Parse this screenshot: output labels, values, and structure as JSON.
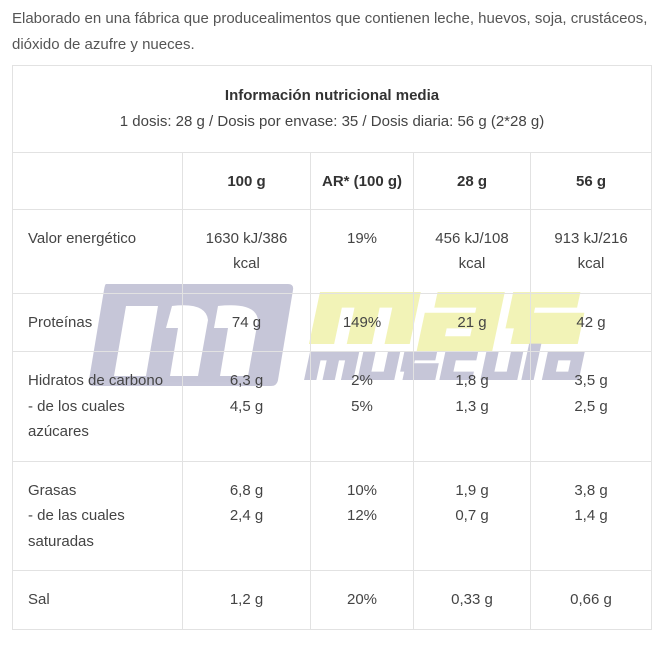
{
  "intro": "Elaborado en una fábrica que producealimentos que contienen leche, huevos, soja, crustáceos, dióxido de azufre y nueces.",
  "table": {
    "title": "Información nutricional media",
    "subtitle": "1 dosis: 28 g / Dosis por envase: 35 / Dosis diaria: 56 g (2*28 g)",
    "columns": [
      "",
      "100 g",
      "AR* (100 g)",
      "28 g",
      "56 g"
    ],
    "rows": [
      {
        "label": [
          "Valor energético"
        ],
        "c1": [
          "1630 kJ/386 kcal"
        ],
        "c2": [
          "19%"
        ],
        "c3": [
          "456 kJ/108 kcal"
        ],
        "c4": [
          "913 kJ/216 kcal"
        ]
      },
      {
        "label": [
          "Proteínas"
        ],
        "c1": [
          "74 g"
        ],
        "c2": [
          "149%"
        ],
        "c3": [
          "21 g"
        ],
        "c4": [
          "42 g"
        ]
      },
      {
        "label": [
          "Hidratos de carbono",
          "- de los cuales azúcares"
        ],
        "c1": [
          "6,3 g",
          "4,5 g"
        ],
        "c2": [
          "2%",
          "5%"
        ],
        "c3": [
          "1,8 g",
          "1,3 g"
        ],
        "c4": [
          "3,5 g",
          "2,5 g"
        ]
      },
      {
        "label": [
          "Grasas",
          "- de las cuales saturadas"
        ],
        "c1": [
          "6,8 g",
          "2,4 g"
        ],
        "c2": [
          "10%",
          "12%"
        ],
        "c3": [
          "1,9 g",
          "0,7 g"
        ],
        "c4": [
          "3,8 g",
          "1,4 g"
        ]
      },
      {
        "label": [
          "Sal"
        ],
        "c1": [
          "1,2 g"
        ],
        "c2": [
          "20%"
        ],
        "c3": [
          "0,33 g"
        ],
        "c4": [
          "0,66 g"
        ]
      }
    ]
  },
  "watermark": {
    "text_top": "mas",
    "text_bottom": "musculo",
    "colors": {
      "gray": "#b4b4cc",
      "yellow": "#eef0a0"
    }
  }
}
